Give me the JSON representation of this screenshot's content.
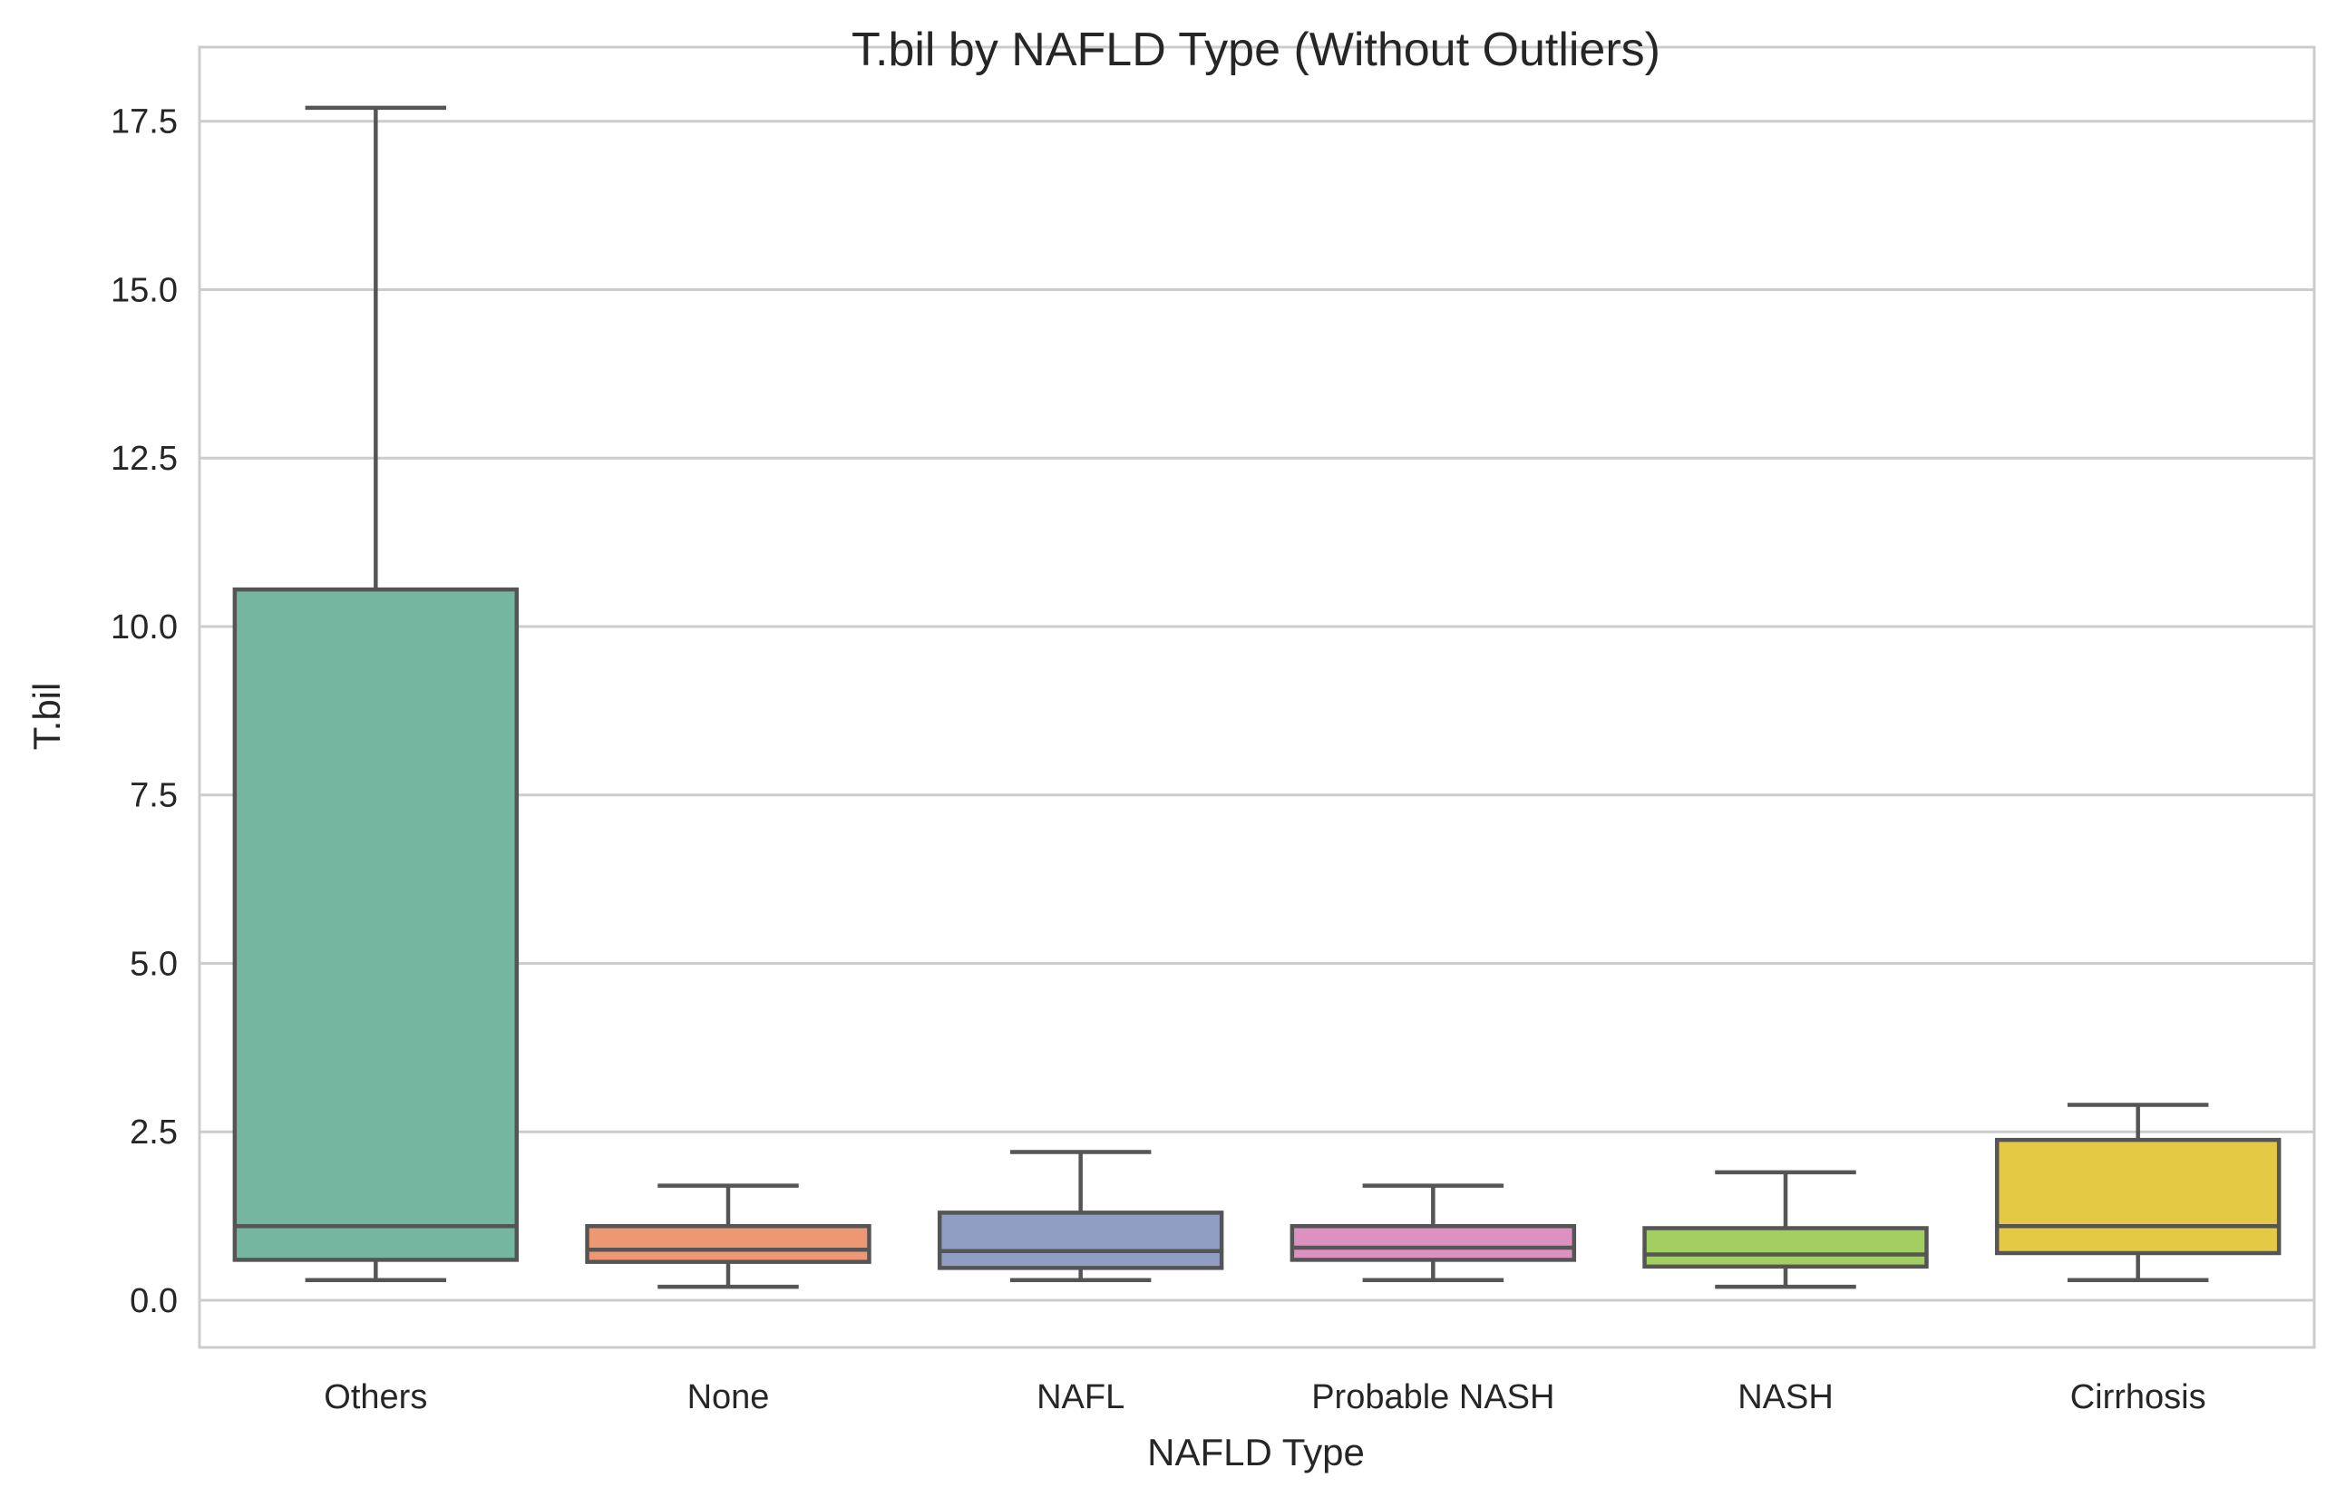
{
  "chart_data": {
    "type": "box",
    "title": "T.bil by NAFLD Type (Without Outliers)",
    "xlabel": "NAFLD Type",
    "ylabel": "T.bil",
    "ylim": [
      -0.7,
      18.6
    ],
    "yticks": [
      "0.0",
      "2.5",
      "5.0",
      "7.5",
      "10.0",
      "12.5",
      "15.0",
      "17.5"
    ],
    "grid": "horizontal",
    "categories": [
      "Others",
      "None",
      "NAFL",
      "Probable NASH",
      "NASH",
      "Cirrhosis"
    ],
    "boxes": [
      {
        "category": "Others",
        "whislo": 0.3,
        "q1": 0.6,
        "median": 1.1,
        "q3": 10.55,
        "whishi": 17.7,
        "color": "#75b6a0"
      },
      {
        "category": "None",
        "whislo": 0.2,
        "q1": 0.57,
        "median": 0.75,
        "q3": 1.1,
        "whishi": 1.7,
        "color": "#ed9873"
      },
      {
        "category": "NAFL",
        "whislo": 0.3,
        "q1": 0.48,
        "median": 0.73,
        "q3": 1.3,
        "whishi": 2.2,
        "color": "#909ec3"
      },
      {
        "category": "Probable NASH",
        "whislo": 0.3,
        "q1": 0.6,
        "median": 0.78,
        "q3": 1.1,
        "whishi": 1.7,
        "color": "#dc91c0"
      },
      {
        "category": "NASH",
        "whislo": 0.2,
        "q1": 0.5,
        "median": 0.68,
        "q3": 1.07,
        "whishi": 1.9,
        "color": "#a3ce60"
      },
      {
        "category": "Cirrhosis",
        "whislo": 0.3,
        "q1": 0.7,
        "median": 1.1,
        "q3": 2.38,
        "whishi": 2.9,
        "color": "#e4c944"
      }
    ],
    "line_color": "#555555",
    "grid_color": "#cccccc",
    "frame_color": "#cccccc"
  }
}
